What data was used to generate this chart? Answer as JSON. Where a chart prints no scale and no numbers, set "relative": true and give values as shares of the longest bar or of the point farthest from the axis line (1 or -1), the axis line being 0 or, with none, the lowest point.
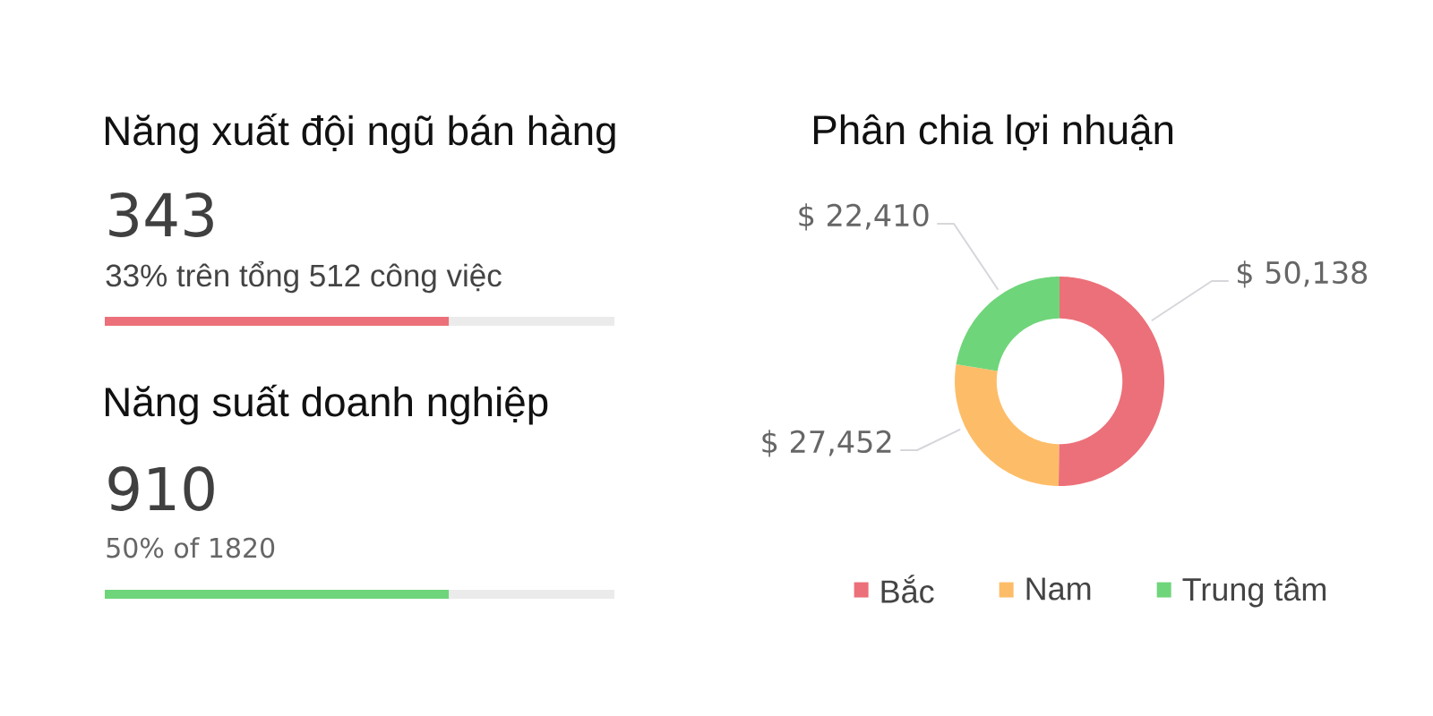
{
  "chart_data": [
    {
      "type": "bar",
      "orientation": "horizontal",
      "stacked": true,
      "relative": true,
      "title": "Năng xuất đội ngũ bán hàng",
      "annotations": [
        "343",
        "33% trên tổng 512 công việc"
      ],
      "categories": [
        null
      ],
      "series": [
        {
          "color": "#ec7079",
          "values": [
            0.675
          ]
        },
        {
          "color": "#ebebeb",
          "values": [
            0.325
          ]
        }
      ]
    },
    {
      "type": "bar",
      "orientation": "horizontal",
      "stacked": true,
      "relative": true,
      "title": "Năng suất doanh nghiệp",
      "annotations": [
        "910",
        "50% of 1820"
      ],
      "categories": [
        null
      ],
      "series": [
        {
          "color": "#6fd57a",
          "values": [
            0.675
          ]
        },
        {
          "color": "#ebebeb",
          "values": [
            0.325
          ]
        }
      ]
    },
    {
      "type": "donut",
      "title": "Phân chia lợi nhuận",
      "categories": [
        "Bắc",
        "Nam",
        "Trung tâm"
      ],
      "values": [
        50138,
        27452,
        22410
      ],
      "colors": [
        "#ec7079",
        "#fdbd68",
        "#6fd57a"
      ],
      "value_labels": [
        "$ 50,138",
        "$ 27,452",
        "$ 22,410"
      ],
      "legend": "bottom"
    }
  ]
}
